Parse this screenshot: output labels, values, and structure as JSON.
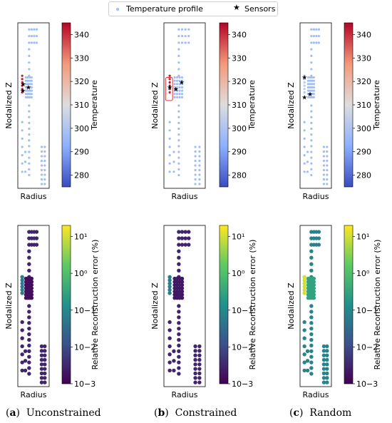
{
  "legend": {
    "profile_label": "Temperature profile",
    "sensors_label": "Sensors",
    "profile_color": "#9fbdf6",
    "sensor_color": "#000000"
  },
  "captions": [
    {
      "letter": "a",
      "text": "Unconstrained"
    },
    {
      "letter": "b",
      "text": "Constrained"
    },
    {
      "letter": "c",
      "text": "Random"
    }
  ],
  "chart_data": [
    {
      "type": "scatter",
      "row": "temperature",
      "panel": "a",
      "xlabel": "Radius",
      "ylabel": "Nodalized Z",
      "colorbar": {
        "label": "Temperature",
        "scale": "linear",
        "range": [
          275,
          345
        ],
        "ticks": [
          280,
          290,
          300,
          310,
          320,
          330,
          340
        ],
        "colormap": "coolwarm"
      },
      "hot_region_value": 342,
      "bulk_value": 306,
      "sensors": [
        [
          0.17,
          0.37
        ],
        [
          0.16,
          0.41
        ],
        [
          0.34,
          0.39
        ]
      ]
    },
    {
      "type": "scatter",
      "row": "temperature",
      "panel": "b",
      "xlabel": "Radius",
      "ylabel": "Nodalized Z",
      "colorbar": {
        "label": "Temperature",
        "scale": "linear",
        "range": [
          275,
          345
        ],
        "ticks": [
          280,
          290,
          300,
          310,
          320,
          330,
          340
        ],
        "colormap": "coolwarm"
      },
      "hot_region_value": 342,
      "bulk_value": 306,
      "constraint_box": true,
      "sensors": [
        [
          0.14,
          0.39
        ],
        [
          0.29,
          0.4
        ],
        [
          0.43,
          0.36
        ]
      ]
    },
    {
      "type": "scatter",
      "row": "temperature",
      "panel": "c",
      "xlabel": "Radius",
      "ylabel": "Nodalized Z",
      "colorbar": {
        "label": "Temperature",
        "scale": "linear",
        "range": [
          275,
          345
        ],
        "ticks": [
          280,
          290,
          300,
          310,
          320,
          330,
          340
        ],
        "colormap": "coolwarm"
      },
      "hot_region_value": 302,
      "bulk_value": 306,
      "sensors": [
        [
          0.14,
          0.33
        ],
        [
          0.14,
          0.45
        ],
        [
          0.32,
          0.43
        ]
      ]
    },
    {
      "type": "scatter",
      "row": "error",
      "panel": "a",
      "xlabel": "Radius",
      "ylabel": "Nodalized Z",
      "colorbar": {
        "label": "Relative Reconstruction error (%)",
        "scale": "log",
        "range": [
          0.001,
          20
        ],
        "ticks": [
          0.001,
          0.01,
          0.1,
          1,
          10
        ],
        "tick_labels": [
          "10−3",
          "10−2",
          "10−1",
          "10⁰",
          "10¹"
        ],
        "colormap": "viridis"
      },
      "bulk_error": 0.003,
      "left_region_error": 0.06,
      "core_error": 0.0015
    },
    {
      "type": "scatter",
      "row": "error",
      "panel": "b",
      "xlabel": "Radius",
      "ylabel": "Nodalized Z",
      "colorbar": {
        "label": "Relative Reconstruction error (%)",
        "scale": "log",
        "range": [
          0.001,
          20
        ],
        "ticks": [
          0.001,
          0.01,
          0.1,
          1,
          10
        ],
        "tick_labels": [
          "10−3",
          "10−2",
          "10−1",
          "10⁰",
          "10¹"
        ],
        "colormap": "viridis"
      },
      "bulk_error": 0.003,
      "left_region_error": 0.06,
      "core_error": 0.002
    },
    {
      "type": "scatter",
      "row": "error",
      "panel": "c",
      "xlabel": "Radius",
      "ylabel": "Nodalized Z",
      "colorbar": {
        "label": "Relative Reconstruction error (%)",
        "scale": "log",
        "range": [
          0.001,
          20
        ],
        "ticks": [
          0.001,
          0.01,
          0.1,
          1,
          10
        ],
        "tick_labels": [
          "10−3",
          "10−2",
          "10−1",
          "10⁰",
          "10¹"
        ],
        "colormap": "viridis"
      },
      "bulk_error": 0.08,
      "left_region_error": 10,
      "core_error": 0.3
    }
  ]
}
